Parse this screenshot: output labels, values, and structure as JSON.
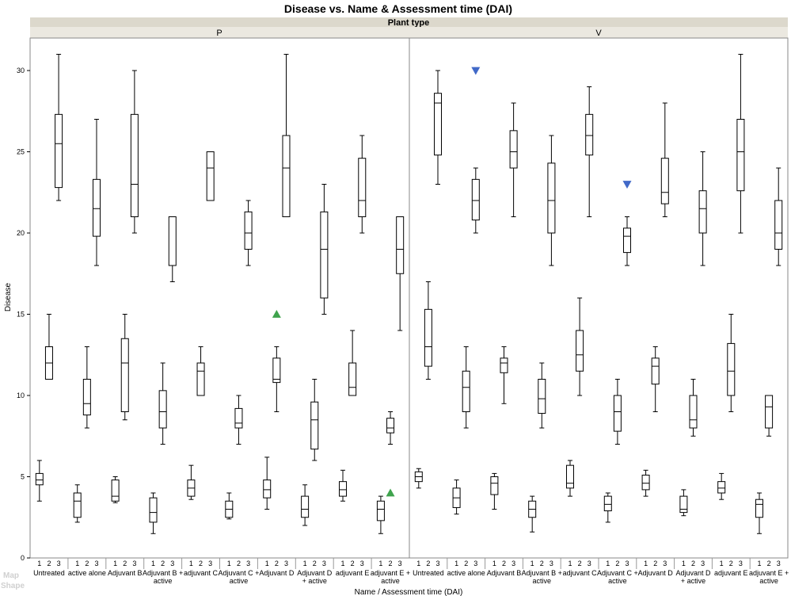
{
  "watermark": {
    "line1": "Map",
    "line2": "Shape"
  },
  "chart_data": {
    "type": "box",
    "title": "Disease vs. Name & Assessment time (DAI)",
    "facet_title": "Plant type",
    "panels": [
      "P",
      "V"
    ],
    "xlabel": "Name / Assessment time (DAI)",
    "ylabel": "Disease",
    "ylim": [
      0,
      32
    ],
    "yticks": [
      0,
      5,
      10,
      15,
      20,
      25,
      30
    ],
    "grid": false,
    "times": [
      "1",
      "2",
      "3"
    ],
    "groups": [
      [
        "Untreated"
      ],
      [
        "active alone"
      ],
      [
        "Adjuvant B"
      ],
      [
        "Adjuvant B +",
        "active"
      ],
      [
        "adjuvant C"
      ],
      [
        "Adjuvant C +",
        "active"
      ],
      [
        "Adjuvant D"
      ],
      [
        "Adjuvant D",
        "+ active"
      ],
      [
        "adjuvant E"
      ],
      [
        "adjuvant E +",
        "active"
      ]
    ],
    "boxes": {
      "P": [
        [
          [
            3.5,
            4.5,
            4.8,
            5.2,
            6.0
          ],
          [
            11.0,
            11.0,
            12.0,
            13.0,
            15.0
          ],
          [
            22.0,
            22.8,
            25.5,
            27.3,
            31.0
          ]
        ],
        [
          [
            2.2,
            2.5,
            3.5,
            4.0,
            4.5
          ],
          [
            8.0,
            8.8,
            9.5,
            11.0,
            13.0
          ],
          [
            18.0,
            19.8,
            21.5,
            23.3,
            27.0
          ]
        ],
        [
          [
            3.4,
            3.5,
            3.8,
            4.8,
            5.0
          ],
          [
            8.5,
            9.0,
            12.0,
            13.5,
            15.0
          ],
          [
            20.0,
            21.0,
            23.0,
            27.3,
            30.0
          ]
        ],
        [
          [
            1.5,
            2.2,
            2.8,
            3.7,
            4.0
          ],
          [
            7.0,
            8.0,
            9.0,
            10.3,
            12.0
          ],
          [
            17.0,
            18.0,
            18.0,
            21.0,
            21.0
          ]
        ],
        [
          [
            3.6,
            3.8,
            4.3,
            4.8,
            5.7
          ],
          [
            10.0,
            10.0,
            11.5,
            12.0,
            13.0
          ],
          [
            22.0,
            22.0,
            24.0,
            25.0,
            25.0
          ]
        ],
        [
          [
            2.4,
            2.5,
            3.0,
            3.5,
            4.0
          ],
          [
            7.0,
            8.0,
            8.3,
            9.2,
            10.0
          ],
          [
            18.0,
            19.0,
            20.0,
            21.3,
            22.0
          ]
        ],
        [
          [
            3.0,
            3.7,
            4.2,
            4.8,
            6.2
          ],
          [
            9.0,
            10.8,
            11.0,
            12.3,
            13.0
          ],
          [
            21.0,
            21.0,
            24.0,
            26.0,
            31.0
          ]
        ],
        [
          [
            2.0,
            2.5,
            3.0,
            3.8,
            4.5
          ],
          [
            6.0,
            6.7,
            8.5,
            9.6,
            11.0
          ],
          [
            15.0,
            16.0,
            19.0,
            21.3,
            23.0
          ]
        ],
        [
          [
            3.5,
            3.8,
            4.2,
            4.7,
            5.4
          ],
          [
            10.0,
            10.0,
            10.5,
            12.0,
            14.0
          ],
          [
            20.0,
            21.0,
            22.0,
            24.6,
            26.0
          ]
        ],
        [
          [
            1.5,
            2.3,
            3.0,
            3.5,
            3.8
          ],
          [
            7.0,
            7.7,
            8.0,
            8.6,
            9.0
          ],
          [
            14.0,
            17.5,
            19.0,
            21.0,
            21.0
          ]
        ]
      ],
      "V": [
        [
          [
            4.3,
            4.7,
            5.0,
            5.3,
            5.5
          ],
          [
            11.0,
            11.8,
            13.0,
            15.3,
            17.0
          ],
          [
            23.0,
            24.8,
            28.0,
            28.6,
            30.0
          ]
        ],
        [
          [
            2.7,
            3.1,
            3.7,
            4.3,
            4.8
          ],
          [
            8.0,
            9.0,
            10.5,
            11.5,
            13.0
          ],
          [
            20.0,
            20.8,
            22.0,
            23.3,
            24.0
          ]
        ],
        [
          [
            3.0,
            3.9,
            4.6,
            5.0,
            5.2
          ],
          [
            9.5,
            11.4,
            12.0,
            12.3,
            13.0
          ],
          [
            21.0,
            24.0,
            25.0,
            26.3,
            28.0
          ]
        ],
        [
          [
            1.6,
            2.5,
            3.0,
            3.5,
            3.8
          ],
          [
            8.0,
            8.9,
            9.8,
            11.0,
            12.0
          ],
          [
            18.0,
            20.0,
            22.0,
            24.3,
            26.0
          ]
        ],
        [
          [
            3.8,
            4.3,
            4.6,
            5.7,
            6.0
          ],
          [
            10.0,
            11.5,
            12.5,
            14.0,
            16.0
          ],
          [
            21.0,
            24.8,
            26.0,
            27.3,
            29.0
          ]
        ],
        [
          [
            2.2,
            2.9,
            3.3,
            3.8,
            4.0
          ],
          [
            7.0,
            7.8,
            9.0,
            10.0,
            11.0
          ],
          [
            18.0,
            18.8,
            19.8,
            20.3,
            21.0
          ]
        ],
        [
          [
            3.8,
            4.2,
            4.6,
            5.1,
            5.4
          ],
          [
            9.0,
            10.7,
            11.8,
            12.3,
            13.0
          ],
          [
            21.0,
            21.8,
            22.5,
            24.6,
            28.0
          ]
        ],
        [
          [
            2.6,
            2.8,
            3.0,
            3.8,
            4.2
          ],
          [
            7.5,
            8.0,
            8.5,
            10.0,
            11.0
          ],
          [
            18.0,
            20.0,
            21.5,
            22.6,
            25.0
          ]
        ],
        [
          [
            3.6,
            4.0,
            4.3,
            4.7,
            5.2
          ],
          [
            9.0,
            10.0,
            11.5,
            13.2,
            15.0
          ],
          [
            20.0,
            22.6,
            25.0,
            27.0,
            31.0
          ]
        ],
        [
          [
            1.5,
            2.5,
            3.3,
            3.6,
            4.0
          ],
          [
            7.5,
            8.0,
            9.3,
            10.0,
            10.0
          ],
          [
            18.0,
            19.0,
            20.0,
            22.0,
            24.0
          ]
        ]
      ]
    },
    "markers": [
      {
        "panel": "P",
        "group": 6,
        "time": "2",
        "value": 15.0,
        "shape": "triangle-up",
        "color": "#3fa34d"
      },
      {
        "panel": "P",
        "group": 9,
        "time": "2",
        "value": 4.0,
        "shape": "triangle-up",
        "color": "#3fa34d"
      },
      {
        "panel": "V",
        "group": 1,
        "time": "3",
        "value": 30.0,
        "shape": "triangle-down",
        "color": "#4169c8"
      },
      {
        "panel": "V",
        "group": 5,
        "time": "3",
        "value": 23.0,
        "shape": "triangle-down",
        "color": "#4169c8"
      }
    ],
    "colors": {
      "strip": "#dcd8cc",
      "frame": "#888888",
      "box": "#000000"
    }
  }
}
